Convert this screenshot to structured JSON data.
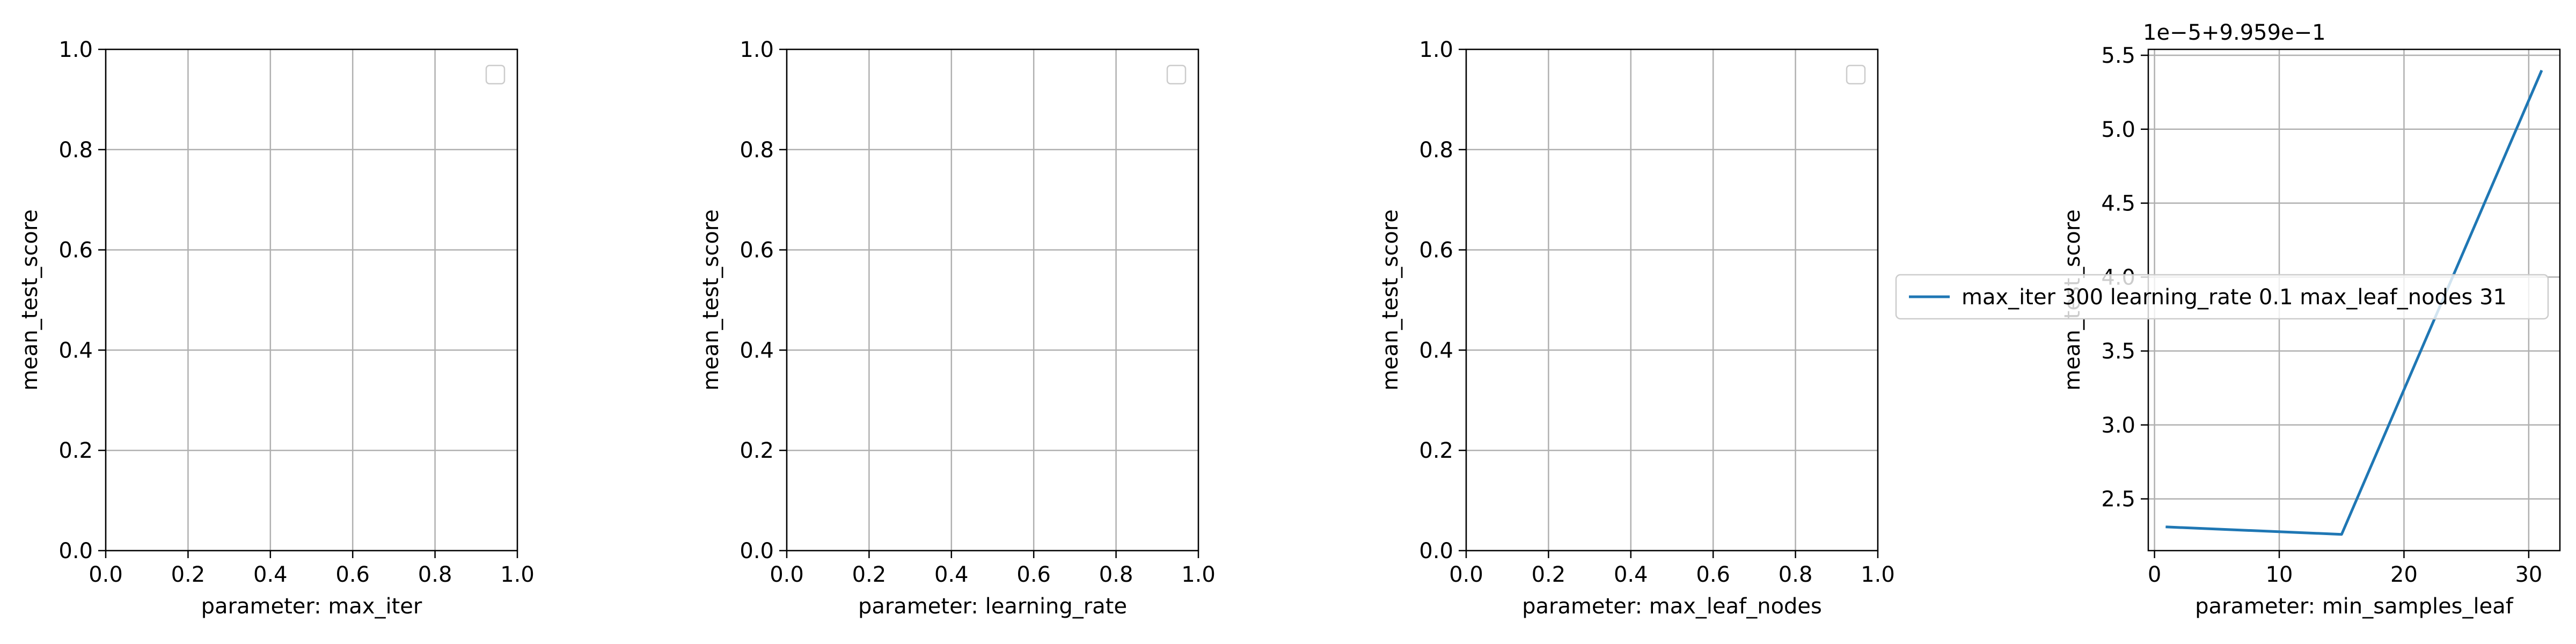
{
  "chart_data": [
    {
      "type": "line",
      "xlabel": "parameter: max_iter",
      "ylabel": "mean_test_score",
      "xlim": [
        0,
        1
      ],
      "ylim": [
        0,
        1
      ],
      "xticks": [
        "0.0",
        "0.2",
        "0.4",
        "0.6",
        "0.8",
        "1.0"
      ],
      "yticks": [
        "0.0",
        "0.2",
        "0.4",
        "0.6",
        "0.8",
        "1.0"
      ],
      "grid": true,
      "legend": "upper-right (empty)",
      "series": []
    },
    {
      "type": "line",
      "xlabel": "parameter: learning_rate",
      "ylabel": "mean_test_score",
      "xlim": [
        0,
        1
      ],
      "ylim": [
        0,
        1
      ],
      "xticks": [
        "0.0",
        "0.2",
        "0.4",
        "0.6",
        "0.8",
        "1.0"
      ],
      "yticks": [
        "0.0",
        "0.2",
        "0.4",
        "0.6",
        "0.8",
        "1.0"
      ],
      "grid": true,
      "legend": "upper-right (empty)",
      "series": []
    },
    {
      "type": "line",
      "xlabel": "parameter: max_leaf_nodes",
      "ylabel": "mean_test_score",
      "xlim": [
        0,
        1
      ],
      "ylim": [
        0,
        1
      ],
      "xticks": [
        "0.0",
        "0.2",
        "0.4",
        "0.6",
        "0.8",
        "1.0"
      ],
      "yticks": [
        "0.0",
        "0.2",
        "0.4",
        "0.6",
        "0.8",
        "1.0"
      ],
      "grid": true,
      "legend": "upper-right (empty)",
      "series": []
    },
    {
      "type": "line",
      "xlabel": "parameter: min_samples_leaf",
      "ylabel": "mean_test_score",
      "xlim": [
        -0.5,
        32.5
      ],
      "ylim": [
        2.15,
        5.54
      ],
      "xticks": [
        "0",
        "10",
        "20",
        "30"
      ],
      "xtick_values": [
        0,
        10,
        20,
        30
      ],
      "yticks": [
        "2.5",
        "3.0",
        "3.5",
        "4.0",
        "4.5",
        "5.0",
        "5.5"
      ],
      "ytick_values": [
        2.5,
        3.0,
        3.5,
        4.0,
        4.5,
        5.0,
        5.5
      ],
      "offset_text": "1e−5+9.959e−1",
      "grid": true,
      "legend": "left of axes, middle",
      "series": [
        {
          "name": "max_iter 300 learning_rate 0.1 max_leaf_nodes 31",
          "color": "#1f77b4",
          "x": [
            1,
            15,
            31
          ],
          "y": [
            2.31,
            2.26,
            5.39
          ]
        }
      ]
    }
  ]
}
